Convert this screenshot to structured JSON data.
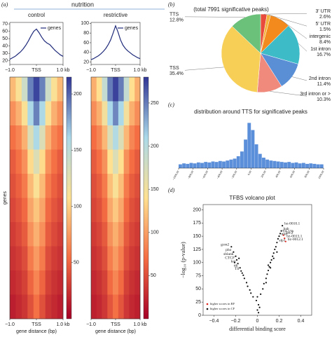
{
  "header": "nutrition",
  "chart_data": [
    {
      "type": "line",
      "panel": "(a)",
      "title": "control",
      "x": [
        -1,
        -0.9,
        -0.8,
        -0.7,
        -0.6,
        -0.5,
        -0.4,
        -0.3,
        -0.2,
        -0.1,
        0,
        0.1,
        0.2,
        0.3,
        0.4,
        0.5,
        0.6,
        0.7,
        0.8,
        0.9,
        1
      ],
      "series": [
        {
          "name": "genes",
          "color": "#1f2a7a",
          "values": [
            22,
            24,
            26,
            29,
            32,
            36,
            41,
            47,
            54,
            60,
            63,
            58,
            52,
            47,
            44,
            42,
            38,
            34,
            31,
            28,
            26
          ]
        }
      ],
      "xlim": [
        -1,
        1
      ],
      "xticks": [
        {
          "value": -1,
          "label": "−1.0"
        },
        {
          "value": 0,
          "label": "TSS"
        },
        {
          "value": 1,
          "label": "1.0 kb"
        }
      ],
      "ylim": [
        15,
        72
      ],
      "yticks": [
        20,
        30,
        40,
        50,
        60,
        70
      ]
    },
    {
      "type": "line",
      "title": "restrictive",
      "x": [
        -1,
        -0.9,
        -0.8,
        -0.7,
        -0.6,
        -0.5,
        -0.4,
        -0.3,
        -0.2,
        -0.1,
        0,
        0.1,
        0.2,
        0.3,
        0.4,
        0.5,
        0.6,
        0.7,
        0.8,
        0.9,
        1
      ],
      "series": [
        {
          "name": "genes",
          "color": "#1f2a7a",
          "values": [
            25,
            27,
            30,
            33,
            37,
            42,
            48,
            56,
            66,
            80,
            95,
            82,
            66,
            55,
            48,
            43,
            39,
            35,
            32,
            29,
            27
          ]
        }
      ],
      "xlim": [
        -1,
        1
      ],
      "xticks": [
        {
          "value": -1,
          "label": "−1.0"
        },
        {
          "value": 0,
          "label": "TSS"
        },
        {
          "value": 1,
          "label": "1.0 kb"
        }
      ],
      "ylim": [
        15,
        102
      ],
      "yticks": [
        20,
        40,
        60,
        80,
        100
      ]
    },
    {
      "type": "heatmap",
      "ylabel": "genes",
      "xlabel": "gene distance (bp)",
      "xlim": [
        -1,
        1
      ],
      "xticks": [
        {
          "value": -1,
          "label": "−1.0"
        },
        {
          "value": 0,
          "label": "TSS"
        },
        {
          "value": 1,
          "label": "1.0 kb"
        }
      ],
      "colormap": [
        "#a50026",
        "#f46d43",
        "#fee090",
        "#abd9e9",
        "#313695"
      ],
      "colorlim": [
        0,
        215
      ],
      "colorticks": [
        50,
        100,
        150,
        200
      ],
      "z": [
        [
          90,
          110,
          140,
          190,
          210,
          190,
          140,
          110,
          90
        ],
        [
          70,
          85,
          110,
          160,
          190,
          160,
          110,
          85,
          70
        ],
        [
          55,
          65,
          85,
          130,
          160,
          130,
          85,
          65,
          55
        ],
        [
          45,
          55,
          70,
          105,
          130,
          105,
          70,
          55,
          45
        ],
        [
          40,
          48,
          60,
          90,
          110,
          90,
          60,
          48,
          40
        ],
        [
          35,
          42,
          52,
          80,
          95,
          80,
          52,
          42,
          35
        ],
        [
          30,
          36,
          45,
          70,
          85,
          70,
          45,
          36,
          30
        ],
        [
          25,
          30,
          38,
          60,
          75,
          60,
          38,
          30,
          25
        ],
        [
          20,
          25,
          32,
          50,
          65,
          50,
          32,
          25,
          20
        ],
        [
          15,
          20,
          26,
          40,
          55,
          40,
          26,
          20,
          15
        ]
      ]
    },
    {
      "type": "heatmap",
      "xlabel": "gene distance (bp)",
      "xlim": [
        -1,
        1
      ],
      "xticks": [
        {
          "value": -1,
          "label": "−1.0"
        },
        {
          "value": 0,
          "label": "TSS"
        },
        {
          "value": 1,
          "label": "1.0 kb"
        }
      ],
      "colormap": [
        "#a50026",
        "#f46d43",
        "#fee090",
        "#abd9e9",
        "#313695"
      ],
      "colorlim": [
        0,
        280
      ],
      "colorticks": [
        50,
        100,
        150,
        200,
        250
      ],
      "z": [
        [
          110,
          140,
          190,
          250,
          275,
          250,
          190,
          140,
          110
        ],
        [
          90,
          110,
          150,
          210,
          245,
          210,
          150,
          110,
          90
        ],
        [
          70,
          85,
          115,
          170,
          205,
          170,
          115,
          85,
          70
        ],
        [
          58,
          70,
          92,
          140,
          170,
          140,
          92,
          70,
          58
        ],
        [
          50,
          60,
          78,
          120,
          145,
          120,
          78,
          60,
          50
        ],
        [
          44,
          52,
          68,
          105,
          125,
          105,
          68,
          52,
          44
        ],
        [
          38,
          45,
          58,
          92,
          110,
          92,
          58,
          45,
          38
        ],
        [
          32,
          38,
          50,
          80,
          98,
          80,
          50,
          38,
          32
        ],
        [
          26,
          32,
          42,
          68,
          85,
          68,
          42,
          32,
          26
        ],
        [
          20,
          26,
          35,
          55,
          72,
          55,
          35,
          26,
          20
        ]
      ]
    },
    {
      "type": "pie",
      "panel": "(b)",
      "title": "(total 7991 significative peaks)",
      "categories": [
        "3' UTR",
        "5' UTR",
        "intergenic",
        "1st intron",
        "2nd intron",
        "3rd intron or >",
        "TSS",
        "TTS"
      ],
      "values": [
        2.6,
        1.5,
        8.4,
        16.7,
        11.4,
        10.3,
        35.4,
        12.8
      ],
      "value_labels": [
        "2.6%",
        "1.5%",
        "8.4%",
        "16.7%",
        "11.4%",
        "10.3%",
        "35.4%",
        "12.8%"
      ],
      "colors": [
        "#e84a3b",
        "#f3b23a",
        "#f28a1e",
        "#3dbcc8",
        "#5a8fd6",
        "#f08a7d",
        "#f7cf57",
        "#6cc17a"
      ]
    },
    {
      "type": "histogram",
      "panel": "(c)",
      "title": "distribution around TTS for significative peaks",
      "color": "#5b8fd9",
      "bins": [
        -1000,
        -950,
        -900,
        -850,
        -800,
        -750,
        -700,
        -650,
        -600,
        -550,
        -500,
        -450,
        -400,
        -350,
        -300,
        -250,
        -200,
        -150,
        -100,
        -50,
        0,
        50,
        100,
        150,
        200,
        250,
        300,
        350,
        400,
        450,
        500,
        550,
        600,
        650,
        700,
        750,
        800,
        850,
        900,
        950,
        1000
      ],
      "counts": [
        8,
        10,
        9,
        11,
        10,
        12,
        11,
        13,
        12,
        14,
        13,
        15,
        14,
        16,
        18,
        20,
        25,
        35,
        60,
        95,
        80,
        50,
        30,
        22,
        18,
        16,
        15,
        14,
        13,
        12,
        13,
        11,
        12,
        10,
        11,
        9,
        10,
        9,
        8,
        8
      ],
      "xlim": [
        -1000,
        1000
      ],
      "ylim": [
        0,
        100
      ],
      "xticks": [
        {
          "value": -1000,
          "label": "−1000.00"
        },
        {
          "value": -800,
          "label": "−800.00"
        },
        {
          "value": -600,
          "label": "−600.00"
        },
        {
          "value": -400,
          "label": "−400.00"
        },
        {
          "value": -200,
          "label": "−200.00"
        },
        {
          "value": 0,
          "label": "0.00"
        },
        {
          "value": 200,
          "label": "200.00"
        },
        {
          "value": 400,
          "label": "400.00"
        },
        {
          "value": 600,
          "label": "600.00"
        },
        {
          "value": 800,
          "label": "800.00"
        },
        {
          "value": 1000,
          "label": "1000.00"
        }
      ]
    },
    {
      "type": "scatter",
      "panel": "(d)",
      "title": "TFBS volcano plot",
      "xlabel": "differential binding score",
      "ylabel": "−log₁₀ (p-value)",
      "xlim": [
        -0.5,
        0.5
      ],
      "xticks": [
        {
          "value": -0.4,
          "label": "−0.4"
        },
        {
          "value": -0.2,
          "label": "−0.2"
        },
        0,
        0.2,
        0.4
      ],
      "ylim": [
        0,
        210
      ],
      "yticks": [
        0,
        25,
        50,
        75,
        100,
        125,
        150,
        175,
        200
      ],
      "series": [
        {
          "name": "higher scores in RF",
          "color": "#e0241b",
          "x": [
            0.24,
            0.25,
            0.26
          ],
          "values": [
            152,
            146,
            140
          ],
          "labels": [
            "Trl.2",
            "bz-0013.1",
            "bz-0012.1"
          ]
        },
        {
          "name": "higher scores in CF",
          "color": "#111111",
          "x": [
            -0.24,
            -0.22,
            -0.2,
            -0.19,
            -0.18,
            -0.16,
            -0.15,
            0.23,
            0.22,
            0.21,
            0.2,
            0.18,
            -0.13,
            -0.12,
            -0.1,
            -0.09,
            -0.07,
            -0.06,
            -0.04,
            -0.21,
            -0.17,
            -0.14,
            0,
            0.01,
            -0.01,
            0,
            0.01,
            0.02,
            0.03,
            0.05,
            0.06,
            0.08,
            0.09,
            0.1,
            0.11,
            0.12,
            0.13,
            0.14,
            0.15,
            0.16,
            0.17,
            0.19,
            0.12,
            0.15,
            0.18,
            0.08,
            0.1
          ],
          "values": [
            130,
            120,
            112,
            105,
            98,
            90,
            84,
            170,
            160,
            155,
            150,
            138,
            76,
            70,
            62,
            55,
            48,
            42,
            35,
            100,
            108,
            80,
            10,
            20,
            28,
            35,
            5,
            15,
            40,
            50,
            60,
            70,
            78,
            85,
            92,
            100,
            105,
            112,
            118,
            125,
            130,
            145,
            90,
            108,
            120,
            62,
            95
          ],
          "labels": [
            "gcm2",
            "pho",
            "sblank",
            "CTCF",
            "kni",
            "ttk",
            "Tll",
            "bz-0010.1",
            "bab",
            "Trl.13b",
            "mirr",
            "slp1",
            null,
            null,
            null,
            null,
            null,
            null,
            null,
            null,
            null,
            null,
            null,
            null,
            null,
            null,
            null,
            null,
            null,
            null,
            null,
            null,
            null,
            null,
            null,
            null,
            null,
            null,
            null,
            null,
            null,
            null,
            null,
            null,
            null,
            null,
            null
          ]
        }
      ]
    }
  ]
}
